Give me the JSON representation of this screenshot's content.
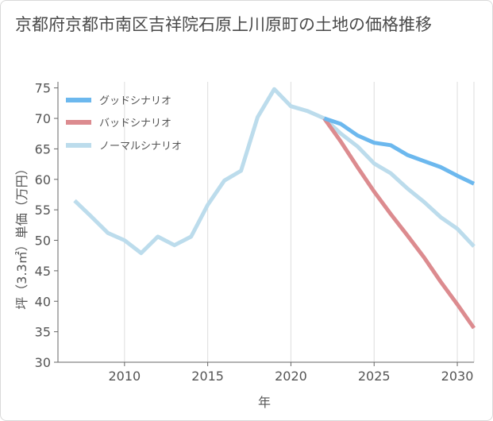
{
  "title": "京都府京都市南区吉祥院石原上川原町の土地の価格推移",
  "chart_data": {
    "type": "line",
    "title": "京都府京都市南区吉祥院石原上川原町の土地の価格推移",
    "xlabel": "年",
    "ylabel": "坪（3.3㎡）単価（万円）",
    "xlim": [
      2006,
      2031
    ],
    "ylim": [
      30,
      76
    ],
    "x_ticks": [
      2010,
      2015,
      2020,
      2025,
      2030
    ],
    "y_ticks": [
      30,
      35,
      40,
      45,
      50,
      55,
      60,
      65,
      70,
      75
    ],
    "grid": "vertical",
    "legend_position": "top-left",
    "series": [
      {
        "name": "グッドシナリオ",
        "color": "#6cb8ee",
        "x": [
          2022,
          2023,
          2024,
          2025,
          2026,
          2027,
          2028,
          2029,
          2030,
          2031
        ],
        "values": [
          70.0,
          69.1,
          67.2,
          66.0,
          65.6,
          64.0,
          63.0,
          62.0,
          60.6,
          59.3
        ]
      },
      {
        "name": "バッドシナリオ",
        "color": "#dc8b8f",
        "x": [
          2022,
          2023,
          2024,
          2025,
          2026,
          2027,
          2028,
          2029,
          2030,
          2031
        ],
        "values": [
          70.0,
          66.2,
          62.0,
          58.0,
          54.3,
          50.8,
          47.2,
          43.2,
          39.5,
          35.6
        ]
      },
      {
        "name": "ノーマルシナリオ",
        "color": "#bcdcec",
        "x": [
          2007,
          2008,
          2009,
          2010,
          2011,
          2012,
          2013,
          2014,
          2015,
          2016,
          2017,
          2018,
          2019,
          2020,
          2021,
          2022,
          2023,
          2024,
          2025,
          2026,
          2027,
          2028,
          2029,
          2030,
          2031
        ],
        "values": [
          56.5,
          53.9,
          51.2,
          50.0,
          47.9,
          50.6,
          49.2,
          50.6,
          55.8,
          59.8,
          61.4,
          70.2,
          74.8,
          72.0,
          71.2,
          70.0,
          67.5,
          65.4,
          62.6,
          61.0,
          58.5,
          56.3,
          53.8,
          51.9,
          49.0
        ]
      }
    ]
  }
}
